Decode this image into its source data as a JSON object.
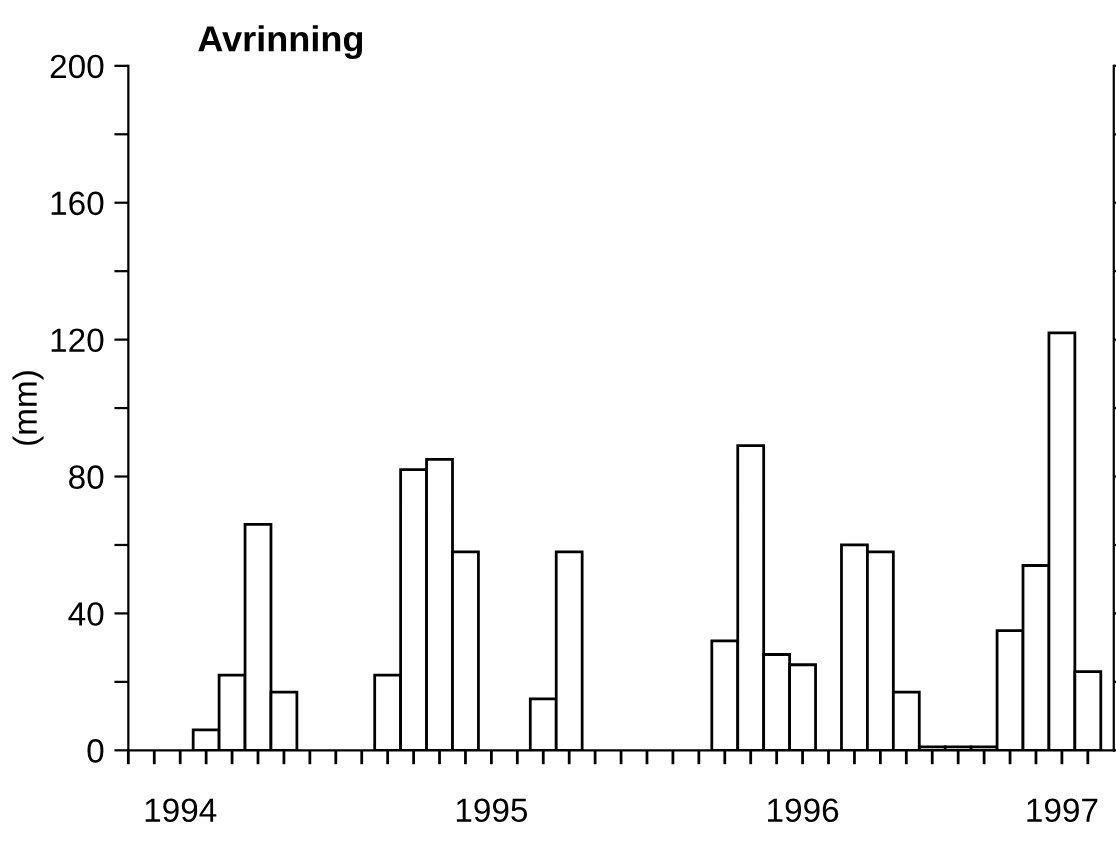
{
  "chart_data": {
    "type": "bar",
    "title": "Avrinning",
    "ylabel": "(mm)",
    "categories": [
      null,
      null,
      "1994",
      null,
      null,
      null,
      null,
      null,
      null,
      null,
      null,
      null,
      null,
      null,
      "1995",
      null,
      null,
      null,
      null,
      null,
      null,
      null,
      null,
      null,
      null,
      null,
      "1996",
      null,
      null,
      null,
      null,
      null,
      null,
      null,
      null,
      null,
      "1997",
      null
    ],
    "values": [
      null,
      null,
      null,
      6,
      22,
      66,
      17,
      null,
      null,
      null,
      22,
      82,
      85,
      58,
      null,
      null,
      15,
      58,
      null,
      null,
      null,
      null,
      null,
      32,
      89,
      28,
      25,
      null,
      60,
      58,
      17,
      1,
      1,
      1,
      35,
      54,
      122,
      23
    ],
    "color": "#ffffff",
    "ylim": [
      0,
      200
    ],
    "yticks": [
      0,
      {
        "value": 20,
        "label": null
      },
      40,
      {
        "value": 60,
        "label": null
      },
      80,
      {
        "value": 100,
        "label": null
      },
      120,
      {
        "value": 140,
        "label": null
      },
      160,
      {
        "value": 180,
        "label": null
      },
      200
    ],
    "grid": false
  }
}
